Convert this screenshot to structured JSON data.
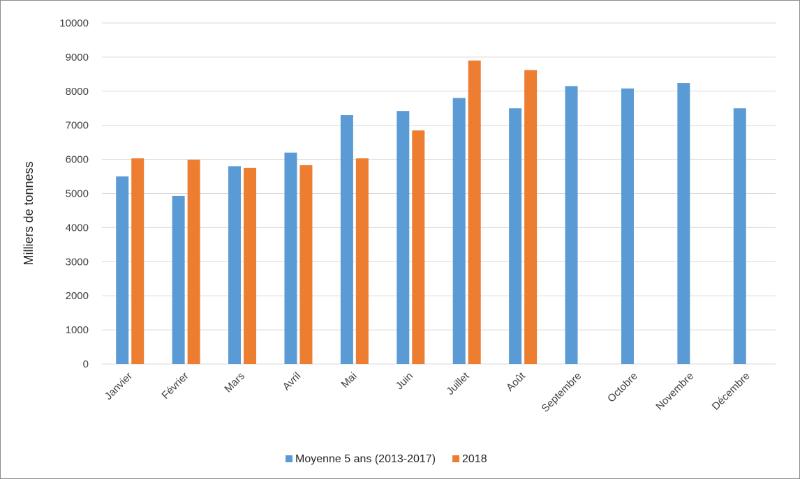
{
  "chart_data": {
    "type": "bar",
    "title": "",
    "xlabel": "",
    "ylabel": "Milliers  de tonness",
    "ylim": [
      0,
      10000
    ],
    "yticks": [
      0,
      1000,
      2000,
      3000,
      4000,
      5000,
      6000,
      7000,
      8000,
      9000,
      10000
    ],
    "grid": true,
    "legend_position": "bottom",
    "categories": [
      "Janvier",
      "Février",
      "Mars",
      "Avril",
      "Mai",
      "Juin",
      "Juillet",
      "Août",
      "Septembre",
      "Octobre",
      "Novembre",
      "Décembre"
    ],
    "series": [
      {
        "name": "Moyenne 5 ans (2013-2017)",
        "color": "#5b9bd5",
        "values": [
          5500,
          4930,
          5800,
          6200,
          7300,
          7420,
          7800,
          7500,
          8150,
          8080,
          8240,
          7500
        ]
      },
      {
        "name": "2018",
        "color": "#ed7d31",
        "values": [
          6030,
          5990,
          5750,
          5830,
          6030,
          6850,
          8900,
          8620,
          null,
          null,
          null,
          null
        ]
      }
    ]
  }
}
